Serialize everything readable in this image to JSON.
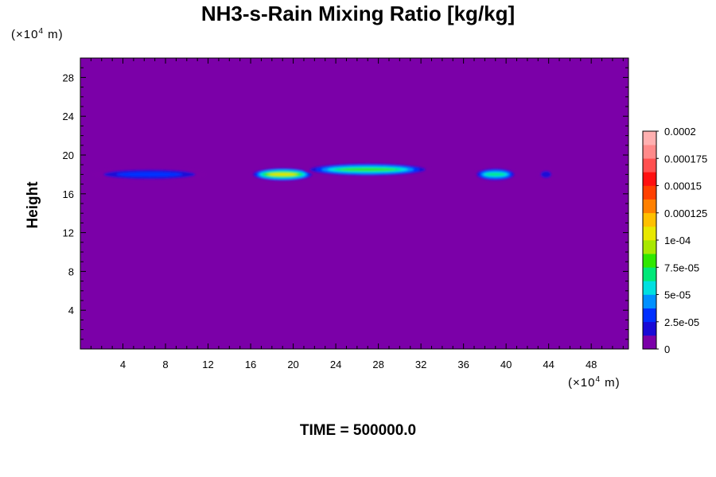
{
  "chart_data": {
    "type": "heatmap",
    "title": "NH3-s-Rain Mixing Ratio [kg/kg]",
    "ylabel": "Height",
    "unit_prefix": "(×10",
    "unit_exp": "4",
    "unit_suffix": " m)",
    "footer": "TIME = 500000.0",
    "xlim": [
      0,
      51.5
    ],
    "ylim": [
      0,
      30
    ],
    "x_ticks": [
      4,
      8,
      12,
      16,
      20,
      24,
      28,
      32,
      36,
      40,
      44,
      48
    ],
    "y_ticks": [
      4,
      8,
      12,
      16,
      20,
      24,
      28
    ],
    "background_value": 0,
    "colorbar": {
      "min": 0,
      "max": 0.0002,
      "labels": [
        "0",
        "2.5e-05",
        "5e-05",
        "7.5e-05",
        "1e-04",
        "0.000125",
        "0.00015",
        "0.000175",
        "0.0002"
      ],
      "colors": [
        "#7b00a8",
        "#1a0ad6",
        "#0030ff",
        "#0090ff",
        "#00e0e0",
        "#00e878",
        "#30e800",
        "#a8e800",
        "#e8e800",
        "#ffc000",
        "#ff8000",
        "#ff4000",
        "#ff1010",
        "#ff5050",
        "#ff8a8a",
        "#ffb0b0"
      ]
    },
    "features": [
      {
        "x_start": 1.0,
        "x_end": 12.0,
        "y_center": 18.0,
        "peak": 3e-05
      },
      {
        "x_start": 16.0,
        "x_end": 22.0,
        "y_center": 18.0,
        "peak": 0.00011
      },
      {
        "x_start": 21.0,
        "x_end": 33.0,
        "y_center": 18.5,
        "peak": 8e-05
      },
      {
        "x_start": 37.0,
        "x_end": 41.0,
        "y_center": 18.0,
        "peak": 7e-05
      },
      {
        "x_start": 43.0,
        "x_end": 44.5,
        "y_center": 18.0,
        "peak": 2e-05
      }
    ]
  }
}
